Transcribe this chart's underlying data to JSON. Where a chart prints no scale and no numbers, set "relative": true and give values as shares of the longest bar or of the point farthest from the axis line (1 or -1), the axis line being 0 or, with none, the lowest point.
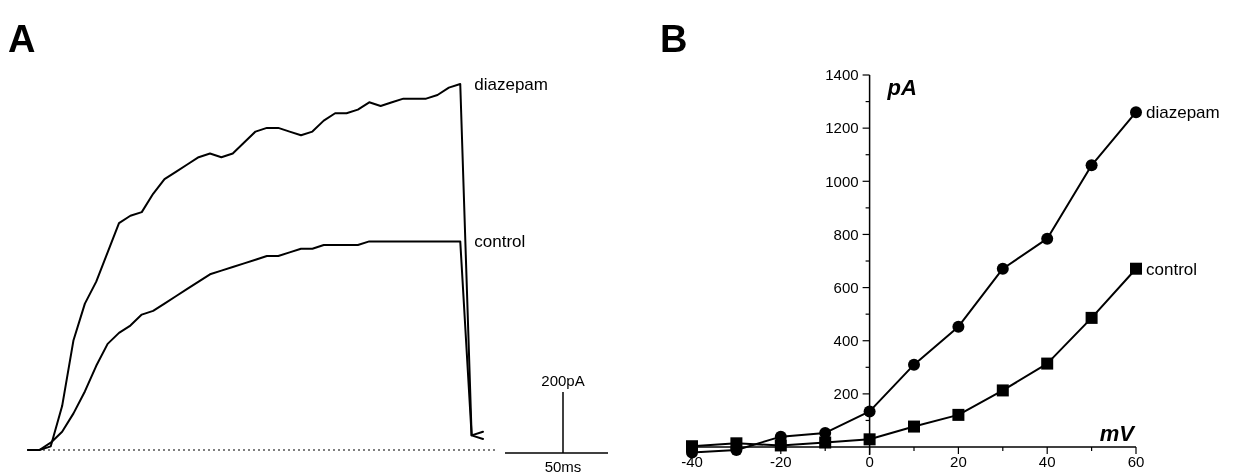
{
  "chart_data": [
    {
      "type": "line",
      "title": "A",
      "relative": true,
      "categories": [
        null,
        null,
        null,
        null,
        null,
        null,
        null,
        null,
        null,
        null,
        null,
        null,
        null,
        null,
        null,
        null,
        null,
        null,
        null,
        null,
        null,
        null,
        null,
        null,
        null,
        null,
        null,
        null,
        null,
        null,
        null,
        null,
        null,
        null,
        null,
        null,
        null,
        null,
        null,
        null,
        null
      ],
      "series": [
        {
          "name": "diazepam",
          "color": "#000000",
          "values": [
            0,
            0,
            0.01,
            0.12,
            0.3,
            0.4,
            0.46,
            0.54,
            0.62,
            0.64,
            0.65,
            0.7,
            0.74,
            0.76,
            0.78,
            0.8,
            0.81,
            0.8,
            0.81,
            0.84,
            0.87,
            0.88,
            0.88,
            0.87,
            0.86,
            0.87,
            0.9,
            0.92,
            0.92,
            0.93,
            0.95,
            0.94,
            0.95,
            0.96,
            0.96,
            0.96,
            0.97,
            0.99,
            1,
            0.04,
            0.03
          ]
        },
        {
          "name": "control",
          "color": "#000000",
          "values": [
            0,
            0,
            0.02,
            0.05,
            0.1,
            0.16,
            0.23,
            0.29,
            0.32,
            0.34,
            0.37,
            0.38,
            0.4,
            0.42,
            0.44,
            0.46,
            0.48,
            0.49,
            0.5,
            0.51,
            0.52,
            0.53,
            0.53,
            0.54,
            0.55,
            0.55,
            0.56,
            0.56,
            0.56,
            0.56,
            0.57,
            0.57,
            0.57,
            0.57,
            0.57,
            0.57,
            0.57,
            0.57,
            0.57,
            0.04,
            0.05
          ]
        }
      ],
      "ref_lines": [
        {
          "axis": "y",
          "value": 0,
          "line_style": "dotted"
        }
      ],
      "annotations": [
        "200pA",
        "50ms"
      ],
      "marker": "none",
      "line_style": "solid"
    },
    {
      "type": "line",
      "title": "B",
      "xlabel": "mV",
      "ylabel": "pA",
      "x": [
        -40,
        -30,
        -20,
        -10,
        0,
        10,
        20,
        30,
        40,
        50,
        60
      ],
      "series": [
        {
          "name": "diazepam",
          "color": "#000000",
          "marker": "circle",
          "values": [
            -21,
            -11,
            39,
            53,
            134,
            310,
            453,
            671,
            784,
            1060,
            1260
          ]
        },
        {
          "name": "control",
          "color": "#000000",
          "marker": "square",
          "values": [
            3,
            14,
            6,
            17,
            29,
            77,
            121,
            213,
            314,
            486,
            671
          ]
        }
      ],
      "xlim": [
        -40,
        60
      ],
      "ylim": [
        -30,
        1400
      ],
      "xticks": [
        -40,
        {
          "value": -30,
          "label": null
        },
        -20,
        {
          "value": -10,
          "label": null
        },
        0,
        {
          "value": 10,
          "label": null
        },
        20,
        {
          "value": 30,
          "label": null
        },
        40,
        {
          "value": 50,
          "label": null
        },
        60
      ],
      "yticks": [
        {
          "value": 100,
          "label": null
        },
        200,
        {
          "value": 300,
          "label": null
        },
        400,
        {
          "value": 500,
          "label": null
        },
        600,
        {
          "value": 700,
          "label": null
        },
        800,
        {
          "value": 900,
          "label": null
        },
        1000,
        {
          "value": 1100,
          "label": null
        },
        1200,
        {
          "value": 1300,
          "label": null
        },
        1400
      ],
      "line_style": "solid"
    }
  ]
}
